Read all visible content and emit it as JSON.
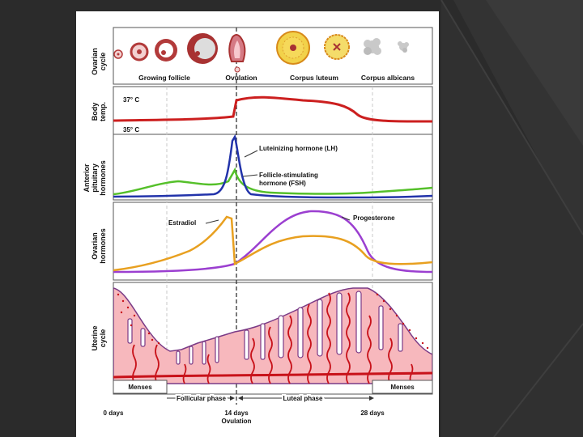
{
  "slide": {
    "background": "#2b2b2b"
  },
  "figure": {
    "row_labels": {
      "ovarian_cycle_1": "Ovarian",
      "ovarian_cycle_2": "cycle",
      "body_temp_1": "Body",
      "body_temp_2": "temp.",
      "anterior_1": "Anterior",
      "anterior_2": "pituitary",
      "anterior_3": "hormones",
      "ovarian_hormones_1": "Ovarian",
      "ovarian_hormones_2": "hormones",
      "uterine_1": "Uterine",
      "uterine_2": "cycle"
    },
    "ovarian_stages": {
      "growing_follicle": "Growing follicle",
      "ovulation": "Ovulation",
      "corpus_luteum": "Corpus luteum",
      "corpus_albicans": "Corpus albicans"
    },
    "temperatures": {
      "high": "37° C",
      "low": "35° C"
    },
    "hormone_labels": {
      "lh": "Luteinizing hormone (LH)",
      "fsh_1": "Follicle-stimulating",
      "fsh_2": "hormone (FSH)",
      "estradiol": "Estradiol",
      "progesterone": "Progesterone"
    },
    "phases": {
      "menses_left": "Menses",
      "menses_right": "Menses",
      "follicular": "Follicular phase",
      "luteal": "Luteal phase"
    },
    "timeline": {
      "day0": "0 days",
      "day14": "14 days",
      "ovulation": "Ovulation",
      "day28": "28 days"
    },
    "colors": {
      "temperature": "#cc1f1f",
      "lh": "#2233aa",
      "fsh": "#55c02a",
      "estradiol": "#e8a020",
      "progesterone": "#9b3fd0",
      "endometrium": "#f7b8bd",
      "vessel": "#c8121a"
    }
  }
}
